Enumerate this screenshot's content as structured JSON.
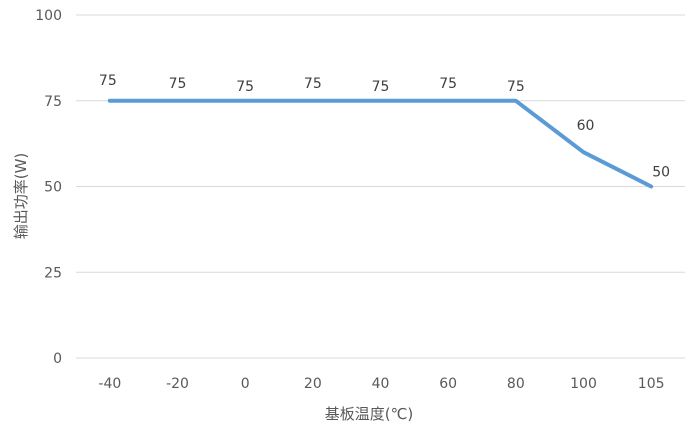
{
  "chart_data": {
    "type": "line",
    "categories": [
      "-40",
      "-20",
      "0",
      "20",
      "40",
      "60",
      "80",
      "100",
      "105"
    ],
    "series": [
      {
        "values": [
          75,
          75,
          75,
          75,
          75,
          75,
          75,
          60,
          50
        ]
      }
    ],
    "data_labels": [
      "75",
      "75",
      "75",
      "75",
      "75",
      "75",
      "75",
      "60",
      "50"
    ],
    "xlabel": "基板温度(℃)",
    "ylabel": "输出功率(W)",
    "ylim": [
      0,
      100
    ],
    "yticks": [
      "0",
      "25",
      "50",
      "75",
      "100"
    ],
    "grid": true,
    "line_color": "#5B9BD5",
    "grid_color": "#D9D9D9"
  }
}
